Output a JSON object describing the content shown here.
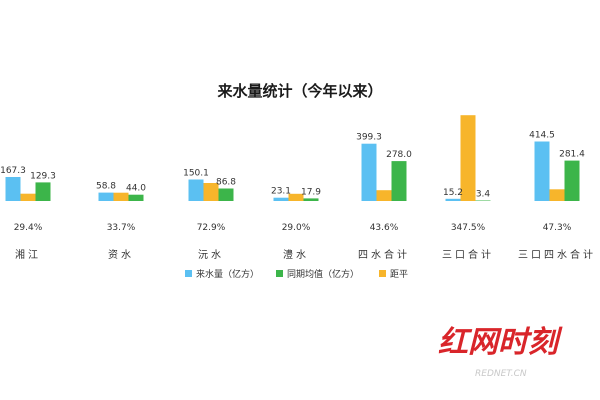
{
  "chart_data": {
    "type": "bar",
    "title": "来水量统计（今年以来）",
    "categories": [
      "湘江",
      "资水",
      "沅水",
      "澧水",
      "四水合计",
      "三口合计",
      "三口四水合计"
    ],
    "series": [
      {
        "name": "来水量（亿方）",
        "color": "#5bc0f2",
        "values": [
          167.3,
          58.8,
          150.1,
          23.1,
          399.3,
          15.2,
          414.5
        ]
      },
      {
        "name": "同期均值（亿方）",
        "color": "#3cb54a",
        "values": [
          129.3,
          44.0,
          86.8,
          17.9,
          278.0,
          3.4,
          281.4
        ]
      },
      {
        "name": "距平",
        "color": "#f7b52b",
        "values": [
          29.4,
          33.7,
          72.9,
          29.0,
          43.6,
          347.5,
          47.3
        ]
      }
    ],
    "value_labels": {
      "来水量（亿方）": [
        "167.3",
        "58.8",
        "150.1",
        "23.1",
        "399.3",
        "15.2",
        "414.5"
      ],
      "同期均值（亿方）": [
        "129.3",
        "44.0",
        "86.8",
        "17.9",
        "278.0",
        "3.4",
        "281.4"
      ],
      "距平": [
        "29.4%",
        "33.7%",
        "72.9%",
        "29.0%",
        "43.6%",
        "347.5%",
        "47.3%"
      ]
    },
    "legend_position": "bottom-center",
    "grid": false
  },
  "watermark": {
    "logo_text": "红网时刻",
    "sub_text": "REDNET.CN"
  }
}
